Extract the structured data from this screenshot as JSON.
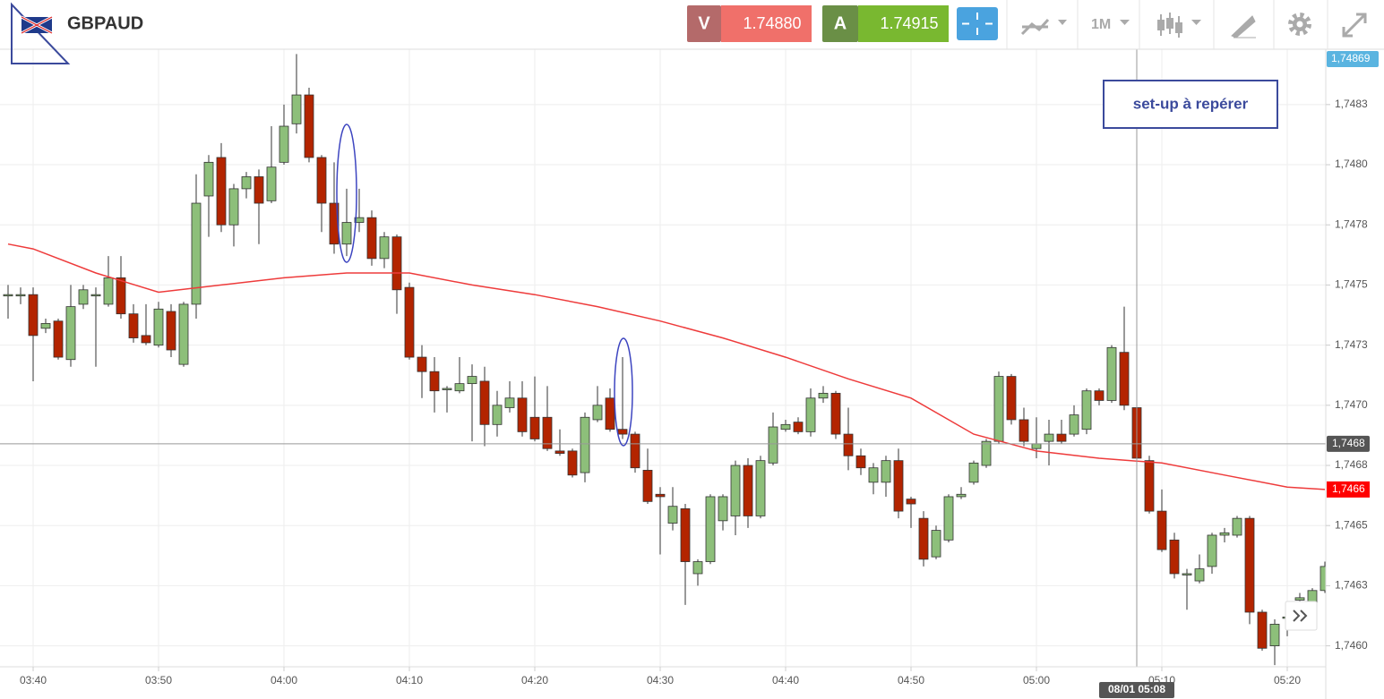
{
  "header": {
    "symbol": "GBPAUD",
    "bid_label": "V",
    "bid": "1.74880",
    "ask_label": "A",
    "ask": "1.74915",
    "timeframe": "1M"
  },
  "chart_data": {
    "type": "candlestick",
    "up_color": "#8dbf7a",
    "down_color": "#b32400",
    "grid": true,
    "annotation": "set-up à repérer",
    "last_price_label": "1,74869",
    "xlim": [
      "03:37",
      "05:23"
    ],
    "xticks": [
      "03:40",
      "03:50",
      "04:00",
      "04:10",
      "04:20",
      "04:30",
      "04:40",
      "04:50",
      "05:00",
      "05:10",
      "05:20"
    ],
    "ylim": [
      1.745913,
      1.74848
    ],
    "yticks": [
      {
        "value": 1.74825,
        "label": "1,7483"
      },
      {
        "value": 1.748,
        "label": "1,7480"
      },
      {
        "value": 1.74775,
        "label": "1,7478"
      },
      {
        "value": 1.7475,
        "label": "1,7475"
      },
      {
        "value": 1.74725,
        "label": "1,7473"
      },
      {
        "value": 1.747,
        "label": "1,7470"
      },
      {
        "value": 1.74675,
        "label": "1,7468"
      },
      {
        "value": 1.7465,
        "label": "1,7465"
      },
      {
        "value": 1.74625,
        "label": "1,7463"
      },
      {
        "value": 1.746,
        "label": "1,7460"
      }
    ],
    "x": [
      "03:38",
      "03:39",
      "03:40",
      "03:41",
      "03:42",
      "03:43",
      "03:44",
      "03:45",
      "03:46",
      "03:47",
      "03:48",
      "03:49",
      "03:50",
      "03:51",
      "03:52",
      "03:53",
      "03:54",
      "03:55",
      "03:56",
      "03:57",
      "03:58",
      "03:59",
      "04:00",
      "04:01",
      "04:02",
      "04:03",
      "04:04",
      "04:05",
      "04:06",
      "04:07",
      "04:08",
      "04:09",
      "04:10",
      "04:11",
      "04:12",
      "04:13",
      "04:14",
      "04:15",
      "04:16",
      "04:17",
      "04:18",
      "04:19",
      "04:20",
      "04:21",
      "04:22",
      "04:23",
      "04:24",
      "04:25",
      "04:26",
      "04:27",
      "04:28",
      "04:29",
      "04:30",
      "04:31",
      "04:32",
      "04:33",
      "04:34",
      "04:35",
      "04:36",
      "04:37",
      "04:38",
      "04:39",
      "04:40",
      "04:41",
      "04:42",
      "04:43",
      "04:44",
      "04:45",
      "04:46",
      "04:47",
      "04:48",
      "04:49",
      "04:50",
      "04:51",
      "04:52",
      "04:53",
      "04:54",
      "04:55",
      "04:56",
      "04:57",
      "04:58",
      "04:59",
      "05:00",
      "05:01",
      "05:02",
      "05:03",
      "05:04",
      "05:05",
      "05:06",
      "05:07",
      "05:08",
      "05:09",
      "05:10",
      "05:11",
      "05:12",
      "05:13",
      "05:14",
      "05:15",
      "05:16",
      "05:17",
      "05:18",
      "05:19",
      "05:20",
      "05:21",
      "05:22",
      "05:23"
    ],
    "open": [
      1.74746,
      1.74746,
      1.74746,
      1.74732,
      1.74735,
      1.74719,
      1.74742,
      1.74746,
      1.74742,
      1.74753,
      1.74738,
      1.74729,
      1.74725,
      1.74739,
      1.74717,
      1.74742,
      1.74787,
      1.74803,
      1.74775,
      1.7479,
      1.74795,
      1.74785,
      1.74801,
      1.74817,
      1.74829,
      1.74803,
      1.74784,
      1.74767,
      1.74776,
      1.74778,
      1.74761,
      1.7477,
      1.74749,
      1.7472,
      1.74714,
      1.74707,
      1.74706,
      1.74709,
      1.7471,
      1.74692,
      1.74699,
      1.74703,
      1.74695,
      1.74695,
      1.74681,
      1.74681,
      1.74672,
      1.74694,
      1.74703,
      1.7469,
      1.74688,
      1.74673,
      1.74663,
      1.74651,
      1.74657,
      1.7463,
      1.74635,
      1.74652,
      1.74654,
      1.74675,
      1.74654,
      1.74676,
      1.7469,
      1.74693,
      1.74689,
      1.74703,
      1.74705,
      1.74688,
      1.74679,
      1.74668,
      1.74668,
      1.74677,
      1.74661,
      1.74653,
      1.74637,
      1.74644,
      1.74662,
      1.74668,
      1.74675,
      1.74685,
      1.74712,
      1.74694,
      1.74682,
      1.74685,
      1.74688,
      1.74688,
      1.7469,
      1.74706,
      1.74702,
      1.74722,
      1.74699,
      1.74677,
      1.74656,
      1.74644,
      1.7463,
      1.74627,
      1.74633,
      1.74646,
      1.74646,
      1.74653,
      1.74614,
      1.746,
      1.74612,
      1.74619,
      1.74618,
      1.74623
    ],
    "high": [
      1.7475,
      1.74749,
      1.74749,
      1.74736,
      1.74736,
      1.7475,
      1.7475,
      1.74749,
      1.74762,
      1.74762,
      1.74742,
      1.74742,
      1.74743,
      1.74742,
      1.74743,
      1.74796,
      1.74804,
      1.74809,
      1.74792,
      1.74797,
      1.74798,
      1.74816,
      1.74825,
      1.74846,
      1.74832,
      1.74804,
      1.74801,
      1.7479,
      1.7479,
      1.74781,
      1.74772,
      1.74771,
      1.74751,
      1.74725,
      1.7472,
      1.74708,
      1.7472,
      1.74717,
      1.74716,
      1.74706,
      1.7471,
      1.7471,
      1.74712,
      1.74708,
      1.7469,
      1.74682,
      1.74697,
      1.74708,
      1.74707,
      1.7472,
      1.74689,
      1.74682,
      1.74666,
      1.74666,
      1.74659,
      1.74636,
      1.74663,
      1.74663,
      1.74677,
      1.74678,
      1.74679,
      1.74697,
      1.74694,
      1.74695,
      1.74707,
      1.74708,
      1.74706,
      1.74699,
      1.74682,
      1.74676,
      1.74679,
      1.74682,
      1.74662,
      1.74656,
      1.7465,
      1.74663,
      1.74666,
      1.74677,
      1.74686,
      1.74714,
      1.74713,
      1.74699,
      1.74695,
      1.74694,
      1.74694,
      1.747,
      1.74707,
      1.74707,
      1.74725,
      1.74741,
      1.74702,
      1.74679,
      1.74665,
      1.74647,
      1.74632,
      1.74638,
      1.74647,
      1.74649,
      1.74654,
      1.74654,
      1.74615,
      1.74611,
      1.74615,
      1.74622,
      1.74624,
      1.74635
    ],
    "low": [
      1.74736,
      1.74742,
      1.7471,
      1.7473,
      1.74719,
      1.74716,
      1.7474,
      1.74716,
      1.74741,
      1.74736,
      1.74726,
      1.74725,
      1.74724,
      1.7472,
      1.74716,
      1.74736,
      1.7477,
      1.74772,
      1.74766,
      1.74786,
      1.74767,
      1.74784,
      1.748,
      1.74813,
      1.74801,
      1.74772,
      1.74763,
      1.74762,
      1.74772,
      1.74758,
      1.74757,
      1.74738,
      1.74719,
      1.74703,
      1.74697,
      1.74697,
      1.74705,
      1.74685,
      1.74683,
      1.74687,
      1.74697,
      1.74687,
      1.74685,
      1.74681,
      1.74679,
      1.7467,
      1.74668,
      1.74693,
      1.74689,
      1.74686,
      1.74672,
      1.74659,
      1.74638,
      1.74648,
      1.74617,
      1.74625,
      1.74634,
      1.74648,
      1.74646,
      1.74649,
      1.74653,
      1.74675,
      1.74689,
      1.74688,
      1.74687,
      1.74701,
      1.74686,
      1.74673,
      1.74671,
      1.74663,
      1.74662,
      1.74653,
      1.74649,
      1.74633,
      1.74636,
      1.74643,
      1.74661,
      1.74667,
      1.74674,
      1.74684,
      1.74692,
      1.74683,
      1.74678,
      1.74675,
      1.74684,
      1.74687,
      1.74688,
      1.747,
      1.74701,
      1.74698,
      1.74677,
      1.74655,
      1.74639,
      1.74628,
      1.74615,
      1.74626,
      1.7463,
      1.74643,
      1.74645,
      1.74609,
      1.74598,
      1.74592,
      1.74604,
      1.74615,
      1.74617,
      1.74622
    ],
    "close": [
      1.74746,
      1.74746,
      1.74729,
      1.74734,
      1.7472,
      1.74741,
      1.74748,
      1.74746,
      1.74753,
      1.74738,
      1.74728,
      1.74726,
      1.7474,
      1.74723,
      1.74742,
      1.74784,
      1.74801,
      1.74775,
      1.7479,
      1.74795,
      1.74784,
      1.74799,
      1.74816,
      1.74829,
      1.74803,
      1.74784,
      1.74767,
      1.74776,
      1.74778,
      1.74761,
      1.7477,
      1.74748,
      1.7472,
      1.74714,
      1.74706,
      1.74707,
      1.74709,
      1.74712,
      1.74692,
      1.747,
      1.74703,
      1.74689,
      1.74686,
      1.74682,
      1.7468,
      1.74671,
      1.74695,
      1.747,
      1.7469,
      1.74688,
      1.74674,
      1.7466,
      1.74662,
      1.74658,
      1.74635,
      1.74635,
      1.74662,
      1.74662,
      1.74675,
      1.74654,
      1.74677,
      1.74691,
      1.74692,
      1.74689,
      1.74703,
      1.74705,
      1.74688,
      1.74679,
      1.74674,
      1.74674,
      1.74677,
      1.74656,
      1.74659,
      1.74636,
      1.74648,
      1.74662,
      1.74663,
      1.74676,
      1.74685,
      1.74712,
      1.74694,
      1.74685,
      1.74684,
      1.74688,
      1.74685,
      1.74696,
      1.74706,
      1.74702,
      1.74724,
      1.747,
      1.74678,
      1.74656,
      1.7464,
      1.7463,
      1.7463,
      1.74632,
      1.74646,
      1.74647,
      1.74653,
      1.74614,
      1.74599,
      1.74609,
      1.74612,
      1.7462,
      1.74623,
      1.74633
    ],
    "ma": {
      "color": "#ee3b3b",
      "label_color": "#ff0000",
      "last_label": "1,7466",
      "x": [
        "03:38",
        "03:40",
        "03:45",
        "03:50",
        "03:55",
        "04:00",
        "04:05",
        "04:10",
        "04:15",
        "04:20",
        "04:25",
        "04:30",
        "04:35",
        "04:40",
        "04:45",
        "04:50",
        "04:55",
        "05:00",
        "05:05",
        "05:10",
        "05:15",
        "05:20",
        "05:23"
      ],
      "values": [
        1.74767,
        1.74765,
        1.74755,
        1.74747,
        1.7475,
        1.74753,
        1.74755,
        1.74755,
        1.7475,
        1.74746,
        1.74741,
        1.74735,
        1.74728,
        1.7472,
        1.74711,
        1.74703,
        1.74688,
        1.74681,
        1.74678,
        1.74676,
        1.74671,
        1.74666,
        1.74665
      ]
    },
    "crosshair": {
      "x": "05:08",
      "y": 1.74684,
      "x_label": "08/01 05:08",
      "y_label": "1,7468"
    }
  }
}
